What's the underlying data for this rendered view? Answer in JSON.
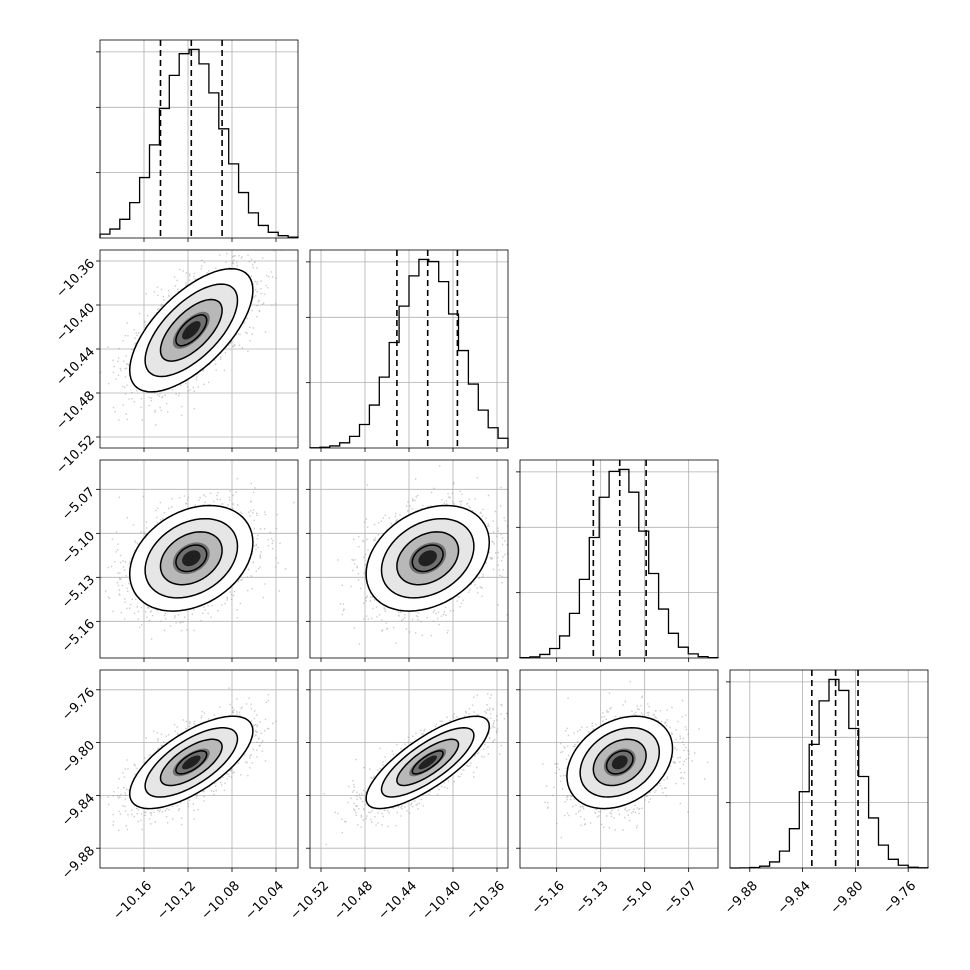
{
  "chart_data": {
    "type": "corner",
    "grid": true,
    "colors": {
      "histogram": "#000000",
      "contour": "#000000",
      "points": "#8c8c8c",
      "density_dark": "#000000",
      "grid": "#b0b0b0"
    },
    "parameters": [
      {
        "mean": -10.117,
        "std": 0.028,
        "quantiles": [
          -10.145,
          -10.117,
          -10.089
        ],
        "range": [
          -10.2,
          -10.02
        ],
        "ticks": [
          -10.16,
          -10.12,
          -10.08,
          -10.04
        ],
        "tick_labels": [
          "−10.16",
          "−10.12",
          "−10.08",
          "−10.04"
        ]
      },
      {
        "mean": -10.423,
        "std": 0.028,
        "quantiles": [
          -10.451,
          -10.423,
          -10.396
        ],
        "range": [
          -10.53,
          -10.35
        ],
        "ticks": [
          -10.52,
          -10.48,
          -10.44,
          -10.4,
          -10.36
        ],
        "tick_labels": [
          "−10.52",
          "−10.48",
          "−10.44",
          "−10.40",
          "−10.36"
        ]
      },
      {
        "mean": -5.117,
        "std": 0.018,
        "quantiles": [
          -5.135,
          -5.117,
          -5.099
        ],
        "range": [
          -5.185,
          -5.05
        ],
        "ticks": [
          -5.16,
          -5.13,
          -5.1,
          -5.07
        ],
        "tick_labels": [
          "−5.16",
          "−5.13",
          "−5.10",
          "−5.07"
        ]
      },
      {
        "mean": -9.815,
        "std": 0.0175,
        "quantiles": [
          -9.833,
          -9.815,
          -9.798
        ],
        "range": [
          -9.895,
          -9.745
        ],
        "ticks": [
          -9.88,
          -9.84,
          -9.8,
          -9.76
        ],
        "tick_labels": [
          "−9.88",
          "−9.84",
          "−9.80",
          "−9.76"
        ]
      }
    ],
    "correlations": [
      [
        1.0,
        0.65,
        0.3,
        0.68
      ],
      [
        0.65,
        1.0,
        0.3,
        0.78
      ],
      [
        0.3,
        0.3,
        1.0,
        0.3
      ],
      [
        0.68,
        0.78,
        0.3,
        1.0
      ]
    ],
    "contour_levels_sigma": [
      0.5,
      1.0,
      1.5,
      2.0
    ]
  }
}
